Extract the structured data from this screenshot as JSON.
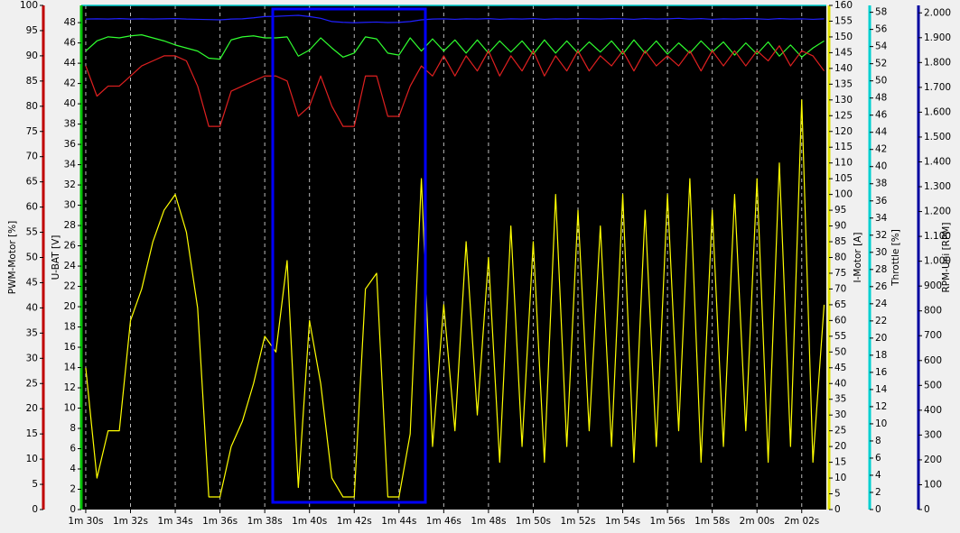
{
  "chart_data": {
    "type": "line",
    "x": [
      90,
      90.5,
      91,
      91.5,
      92,
      92.5,
      93,
      93.5,
      94,
      94.5,
      95,
      95.5,
      96,
      96.5,
      97,
      97.5,
      98,
      98.5,
      99,
      99.5,
      100,
      100.5,
      101,
      101.5,
      102,
      102.5,
      103,
      103.5,
      104,
      104.5,
      105,
      105.5,
      106,
      106.5,
      107,
      107.5,
      108,
      108.5,
      109,
      109.5,
      110,
      110.5,
      111,
      111.5,
      112,
      112.5,
      113,
      113.5,
      114,
      114.5,
      115,
      115.5,
      116,
      116.5,
      117,
      117.5,
      118,
      118.5,
      119,
      119.5,
      120,
      120.5,
      121,
      121.5,
      122,
      122.5,
      123
    ],
    "xlim": [
      89.8,
      123.1
    ],
    "xticks": [
      {
        "value": 90,
        "label": "1m 30s"
      },
      {
        "value": 92,
        "label": "1m 32s"
      },
      {
        "value": 94,
        "label": "1m 34s"
      },
      {
        "value": 96,
        "label": "1m 36s"
      },
      {
        "value": 98,
        "label": "1m 38s"
      },
      {
        "value": 100,
        "label": "1m 40s"
      },
      {
        "value": 102,
        "label": "1m 42s"
      },
      {
        "value": 104,
        "label": "1m 44s"
      },
      {
        "value": 106,
        "label": "1m 46s"
      },
      {
        "value": 108,
        "label": "1m 48s"
      },
      {
        "value": 110,
        "label": "1m 50s"
      },
      {
        "value": 112,
        "label": "1m 52s"
      },
      {
        "value": 114,
        "label": "1m 54s"
      },
      {
        "value": 116,
        "label": "1m 56s"
      },
      {
        "value": 118,
        "label": "1m 58s"
      },
      {
        "value": 120,
        "label": "2m 00s"
      },
      {
        "value": 122,
        "label": "2m 02s"
      }
    ],
    "grid": true,
    "ylabel": "PWM-Motor [%]",
    "ylim": [
      0,
      100
    ],
    "yticks": [
      0,
      5,
      10,
      15,
      20,
      25,
      30,
      35,
      40,
      45,
      50,
      55,
      60,
      65,
      70,
      75,
      80,
      85,
      90,
      95,
      100
    ],
    "y2label": "U-BAT [V]",
    "y2lim": [
      0,
      49.7
    ],
    "y2ticks": [
      0,
      2,
      4,
      6,
      8,
      10,
      12,
      14,
      16,
      18,
      20,
      22,
      24,
      26,
      28,
      30,
      32,
      34,
      36,
      38,
      40,
      42,
      44,
      46,
      48
    ],
    "y3label": "I-Motor [A]",
    "y3lim": [
      0,
      160
    ],
    "y3ticks": [
      0,
      5,
      10,
      15,
      20,
      25,
      30,
      35,
      40,
      45,
      50,
      55,
      60,
      65,
      70,
      75,
      80,
      85,
      90,
      95,
      100,
      105,
      110,
      115,
      120,
      125,
      130,
      135,
      140,
      145,
      150,
      155,
      160
    ],
    "y4label": "Throttle [%]",
    "y4lim": [
      0,
      58.8
    ],
    "y4ticks": [
      0,
      2,
      4,
      6,
      8,
      10,
      12,
      14,
      16,
      18,
      20,
      22,
      24,
      26,
      28,
      30,
      32,
      34,
      36,
      38,
      40,
      42,
      44,
      46,
      48,
      50,
      52,
      54,
      56,
      58
    ],
    "y5label": "RPM-Uni [RPM]",
    "y5lim": [
      0,
      2030
    ],
    "y5ticks": [
      0,
      100,
      200,
      300,
      400,
      500,
      600,
      700,
      800,
      900,
      {
        "value": 1000,
        "label": "1.000"
      },
      {
        "value": 1100,
        "label": "1.100"
      },
      {
        "value": 1200,
        "label": "1.200"
      },
      {
        "value": 1300,
        "label": "1.300"
      },
      {
        "value": 1400,
        "label": "1.400"
      },
      {
        "value": 1500,
        "label": "1.500"
      },
      {
        "value": 1600,
        "label": "1.600"
      },
      {
        "value": 1700,
        "label": "1.700"
      },
      {
        "value": 1800,
        "label": "1.800"
      },
      {
        "value": 1900,
        "label": "1.900"
      },
      {
        "value": 2000,
        "label": "2.000"
      }
    ],
    "axis_colors": {
      "y": "#c00000",
      "y2": "#00c000",
      "y3": "#e0e000",
      "y4": "#00d0d0",
      "y5": "#0000a0"
    },
    "series": [
      {
        "axis": "y5",
        "color": "#2020ff",
        "values": [
          1975,
          1976,
          1975,
          1977,
          1975,
          1976,
          1975,
          1976,
          1977,
          1975,
          1974,
          1973,
          1972,
          1975,
          1976,
          1980,
          1985,
          1986,
          1988,
          1990,
          1985,
          1978,
          1965,
          1962,
          1960,
          1962,
          1963,
          1961,
          1962,
          1965,
          1972,
          1975,
          1976,
          1974,
          1976,
          1975,
          1977,
          1974,
          1976,
          1975,
          1977,
          1974,
          1976,
          1975,
          1977,
          1976,
          1975,
          1977,
          1976,
          1974,
          1977,
          1975,
          1976,
          1978,
          1975,
          1977,
          1974,
          1976,
          1975,
          1977,
          1976,
          1974,
          1977,
          1975,
          1976,
          1974,
          1976
        ]
      },
      {
        "axis": "y2",
        "color": "#30ff30",
        "values": [
          45.2,
          46.2,
          46.6,
          46.5,
          46.7,
          46.8,
          46.5,
          46.2,
          45.8,
          45.5,
          45.2,
          44.5,
          44.4,
          46.3,
          46.6,
          46.7,
          46.5,
          46.5,
          46.6,
          44.7,
          45.3,
          46.5,
          45.5,
          44.6,
          45,
          46.6,
          46.4,
          45,
          44.8,
          46.5,
          45.2,
          46.4,
          45.2,
          46.3,
          45,
          46.3,
          45,
          46.2,
          45.1,
          46.2,
          44.9,
          46.3,
          45,
          46.2,
          45,
          46.1,
          45.1,
          46.2,
          44.9,
          46.3,
          45,
          46.2,
          44.9,
          46,
          45,
          46.2,
          45.1,
          46.1,
          44.8,
          46,
          44.9,
          46.1,
          44.7,
          45.8,
          44.6,
          45.5,
          46.2
        ]
      },
      {
        "axis": "y",
        "color": "#e02020",
        "values": [
          88,
          82,
          84,
          84,
          86,
          88,
          89,
          90,
          90,
          89,
          84,
          76,
          76,
          83,
          84,
          85,
          86,
          86,
          85,
          78,
          80,
          86,
          80,
          76,
          76,
          86,
          86,
          78,
          78,
          84,
          88,
          86,
          90,
          86,
          90,
          87,
          91,
          86,
          90,
          87,
          91,
          86,
          90,
          87,
          91,
          87,
          90,
          88,
          91,
          87,
          91,
          88,
          90,
          88,
          91,
          87,
          91,
          88,
          91,
          88,
          91,
          89,
          92,
          88,
          91,
          90,
          87
        ]
      },
      {
        "axis": "y3",
        "color": "#ffff00",
        "values": [
          45,
          10,
          25,
          25,
          60,
          70,
          85,
          95,
          100,
          88,
          64,
          4,
          4,
          20,
          28,
          40,
          55,
          50,
          79,
          7,
          60,
          40,
          10,
          4,
          4,
          70,
          75,
          4,
          4,
          24,
          105,
          20,
          65,
          25,
          85,
          30,
          80,
          15,
          90,
          20,
          85,
          15,
          100,
          20,
          95,
          25,
          90,
          20,
          100,
          15,
          95,
          20,
          100,
          25,
          105,
          15,
          95,
          20,
          100,
          25,
          105,
          15,
          110,
          20,
          130,
          15,
          65
        ]
      }
    ]
  }
}
